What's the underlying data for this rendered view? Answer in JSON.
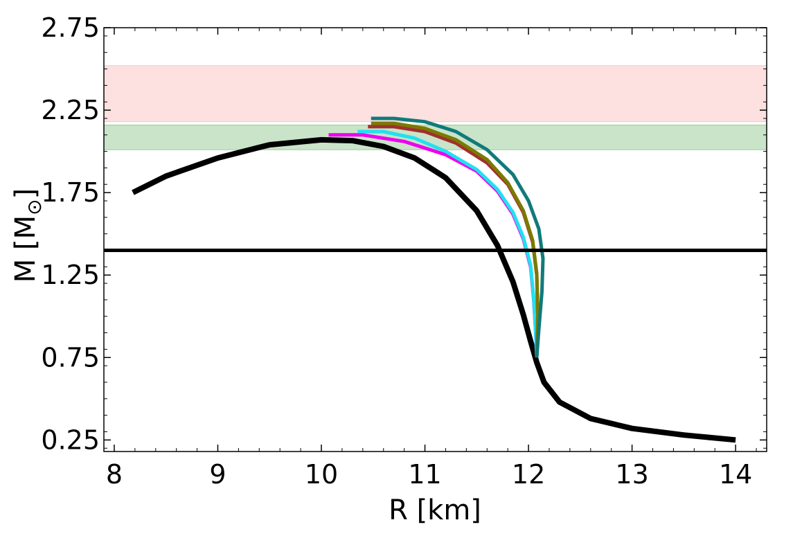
{
  "chart_data": {
    "type": "line",
    "title": "",
    "xlabel": "R [km]",
    "ylabel_main": "M [M",
    "ylabel_sub": "⊙",
    "ylabel_close": "]",
    "xlim": [
      7.9,
      14.3
    ],
    "ylim": [
      0.18,
      2.75
    ],
    "xticks": [
      8,
      9,
      10,
      11,
      12,
      13,
      14
    ],
    "xtick_labels": [
      "8",
      "9",
      "10",
      "11",
      "12",
      "13",
      "14"
    ],
    "yticks": [
      0.25,
      0.75,
      1.25,
      1.75,
      2.25,
      2.75
    ],
    "ytick_labels": [
      "0.25",
      "0.75",
      "1.25",
      "1.75",
      "2.25",
      "2.75"
    ],
    "grid": false,
    "bands": [
      {
        "name": "red-band",
        "ymin": 2.18,
        "ymax": 2.52,
        "color": "#fde0e0",
        "edge": "#f4c6c6"
      },
      {
        "name": "green-band",
        "ymin": 2.01,
        "ymax": 2.16,
        "color": "#c9e4c9",
        "edge": "#9bcc9b"
      }
    ],
    "hline": {
      "y": 1.4,
      "color": "#000000"
    },
    "series": [
      {
        "name": "black",
        "color": "#000000",
        "x": [
          8.18,
          8.5,
          9.0,
          9.5,
          10.0,
          10.3,
          10.6,
          10.9,
          11.2,
          11.5,
          11.7,
          11.85,
          11.95,
          12.02,
          12.08,
          12.15,
          12.3,
          12.6,
          13.0,
          13.5,
          14.0
        ],
        "y": [
          1.75,
          1.85,
          1.96,
          2.04,
          2.07,
          2.065,
          2.03,
          1.96,
          1.84,
          1.64,
          1.43,
          1.21,
          1.01,
          0.85,
          0.72,
          0.6,
          0.48,
          0.38,
          0.32,
          0.28,
          0.25
        ]
      },
      {
        "name": "magenta",
        "color": "#ee00ee",
        "x": [
          10.07,
          10.4,
          10.8,
          11.2,
          11.5,
          11.7,
          11.85,
          11.95,
          12.02,
          12.05,
          12.07,
          12.08
        ],
        "y": [
          2.1,
          2.1,
          2.06,
          1.98,
          1.88,
          1.76,
          1.62,
          1.47,
          1.3,
          1.1,
          0.9,
          0.75
        ]
      },
      {
        "name": "cyan",
        "color": "#22e0f0",
        "x": [
          10.35,
          10.6,
          10.9,
          11.2,
          11.5,
          11.7,
          11.85,
          11.95,
          12.02,
          12.05,
          12.07,
          12.08
        ],
        "y": [
          2.12,
          2.12,
          2.08,
          2.0,
          1.89,
          1.77,
          1.63,
          1.48,
          1.31,
          1.11,
          0.91,
          0.75
        ]
      },
      {
        "name": "brown",
        "color": "#a03030",
        "x": [
          10.45,
          10.7,
          11.0,
          11.3,
          11.6,
          11.8,
          11.95,
          12.04,
          12.08,
          12.09,
          12.08
        ],
        "y": [
          2.15,
          2.15,
          2.12,
          2.05,
          1.93,
          1.8,
          1.63,
          1.45,
          1.25,
          1.0,
          0.75
        ]
      },
      {
        "name": "olive",
        "color": "#7a7a00",
        "x": [
          10.48,
          10.7,
          11.0,
          11.3,
          11.6,
          11.8,
          11.95,
          12.04,
          12.08,
          12.09,
          12.08
        ],
        "y": [
          2.17,
          2.17,
          2.14,
          2.07,
          1.95,
          1.81,
          1.64,
          1.46,
          1.26,
          1.01,
          0.75
        ]
      },
      {
        "name": "teal",
        "color": "#117a7a",
        "x": [
          10.48,
          10.7,
          11.0,
          11.3,
          11.6,
          11.85,
          12.0,
          12.1,
          12.14,
          12.13,
          12.1,
          12.08
        ],
        "y": [
          2.2,
          2.2,
          2.18,
          2.12,
          2.01,
          1.86,
          1.7,
          1.53,
          1.35,
          1.15,
          0.92,
          0.75
        ]
      }
    ]
  }
}
